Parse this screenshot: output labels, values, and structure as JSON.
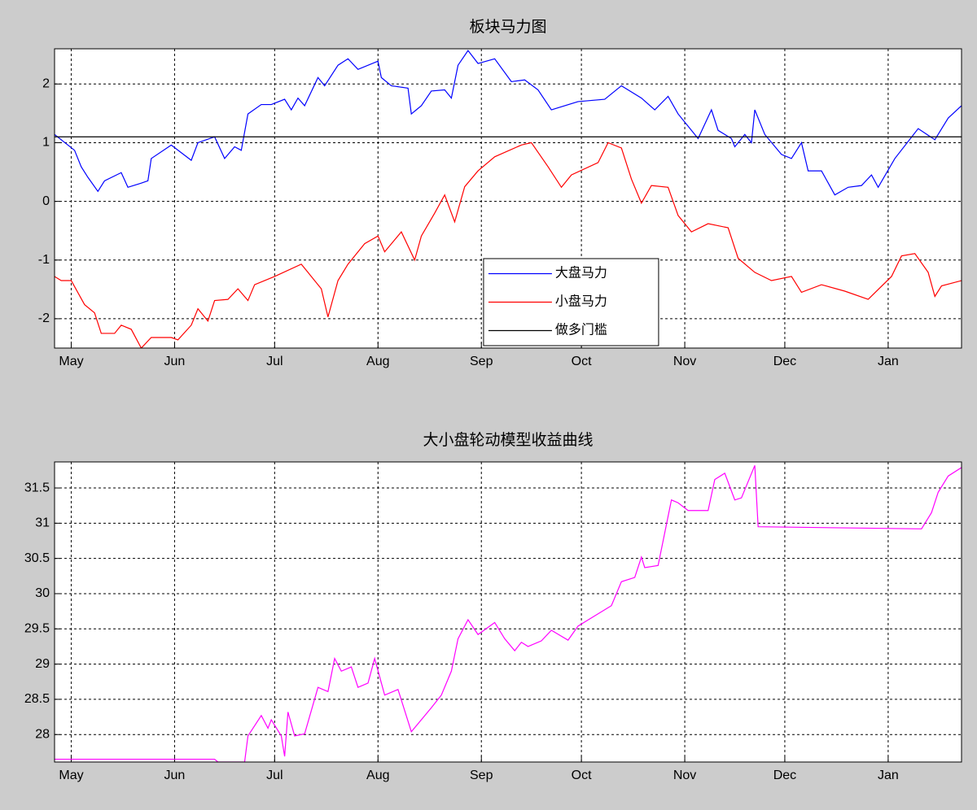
{
  "chart_data": [
    {
      "type": "line",
      "title": "板块马力图",
      "xlim": [
        -5,
        267
      ],
      "xticks": [
        {
          "value": 0,
          "label": "May"
        },
        {
          "value": 31,
          "label": "Jun"
        },
        {
          "value": 61,
          "label": "Jul"
        },
        {
          "value": 92,
          "label": "Aug"
        },
        {
          "value": 123,
          "label": "Sep"
        },
        {
          "value": 153,
          "label": "Oct"
        },
        {
          "value": 184,
          "label": "Nov"
        },
        {
          "value": 214,
          "label": "Dec"
        },
        {
          "value": 245,
          "label": "Jan"
        }
      ],
      "ylim": [
        -2.5,
        2.6
      ],
      "yticks": [
        -2,
        -1,
        0,
        1,
        2
      ],
      "grid": true,
      "legend": "lower center",
      "series": [
        {
          "name": "大盘马力",
          "color": "#0000ff",
          "x": [
            -5,
            1,
            3,
            5,
            8,
            10,
            15,
            17,
            21,
            23,
            24,
            30,
            36,
            38,
            43,
            46,
            49,
            51,
            53,
            57,
            60,
            64,
            66,
            68,
            70,
            74,
            76,
            80,
            83,
            86,
            92,
            93,
            96,
            101,
            102,
            105,
            108,
            112,
            114,
            116,
            119,
            122,
            127,
            132,
            136,
            140,
            144,
            152,
            160,
            165,
            171,
            175,
            179,
            182,
            186,
            188,
            192,
            194,
            198,
            199,
            202,
            204,
            205,
            208,
            213,
            216,
            219,
            221,
            225,
            229,
            233,
            237,
            240,
            242,
            247,
            254,
            259,
            263,
            267
          ],
          "values": [
            1.14,
            0.87,
            0.59,
            0.41,
            0.17,
            0.35,
            0.49,
            0.24,
            0.31,
            0.35,
            0.73,
            0.96,
            0.7,
            1.0,
            1.1,
            0.73,
            0.93,
            0.87,
            1.49,
            1.65,
            1.65,
            1.74,
            1.56,
            1.76,
            1.63,
            2.11,
            1.97,
            2.32,
            2.43,
            2.25,
            2.39,
            2.11,
            1.97,
            1.93,
            1.49,
            1.63,
            1.88,
            1.9,
            1.76,
            2.32,
            2.57,
            2.35,
            2.43,
            2.04,
            2.07,
            1.9,
            1.56,
            1.7,
            1.74,
            1.97,
            1.76,
            1.56,
            1.79,
            1.49,
            1.21,
            1.07,
            1.56,
            1.21,
            1.07,
            0.93,
            1.14,
            1.0,
            1.56,
            1.14,
            0.8,
            0.73,
            1.0,
            0.52,
            0.52,
            0.11,
            0.24,
            0.27,
            0.45,
            0.24,
            0.73,
            1.24,
            1.05,
            1.42,
            1.63
          ]
        },
        {
          "name": "小盘马力",
          "color": "#ff0000",
          "x": [
            -5,
            -3,
            0,
            4,
            7,
            9,
            13,
            15,
            18,
            21,
            24,
            30,
            32,
            36,
            38,
            41,
            43,
            47,
            50,
            53,
            55,
            61,
            69,
            71,
            75,
            77,
            80,
            83,
            88,
            92,
            94,
            99,
            103,
            105,
            109,
            112,
            115,
            118,
            122,
            127,
            135,
            138,
            143,
            147,
            150,
            158,
            161,
            165,
            168,
            171,
            174,
            179,
            182,
            186,
            191,
            197,
            200,
            205,
            210,
            216,
            219,
            225,
            232,
            239,
            246,
            249,
            253,
            257,
            259,
            261,
            267
          ],
          "values": [
            -1.28,
            -1.35,
            -1.35,
            -1.76,
            -1.9,
            -2.25,
            -2.25,
            -2.11,
            -2.18,
            -2.5,
            -2.32,
            -2.32,
            -2.36,
            -2.11,
            -1.83,
            -2.04,
            -1.69,
            -1.67,
            -1.49,
            -1.69,
            -1.42,
            -1.28,
            -1.07,
            -1.21,
            -1.49,
            -1.97,
            -1.35,
            -1.07,
            -0.72,
            -0.59,
            -0.86,
            -0.52,
            -1.0,
            -0.59,
            -0.2,
            0.11,
            -0.35,
            0.25,
            0.52,
            0.76,
            0.96,
            1.0,
            0.59,
            0.24,
            0.45,
            0.66,
            1.0,
            0.91,
            0.38,
            -0.03,
            0.27,
            0.24,
            -0.24,
            -0.52,
            -0.38,
            -0.45,
            -0.97,
            -1.21,
            -1.35,
            -1.28,
            -1.55,
            -1.42,
            -1.53,
            -1.67,
            -1.28,
            -0.93,
            -0.89,
            -1.21,
            -1.62,
            -1.44,
            -1.35
          ]
        },
        {
          "name": "做多门槛",
          "color": "#000000",
          "x": [
            -5,
            267
          ],
          "values": [
            1.1,
            1.1
          ]
        }
      ]
    },
    {
      "type": "line",
      "title": "大小盘轮动模型收益曲线",
      "xlim": [
        -5,
        267
      ],
      "xticks": [
        {
          "value": 0,
          "label": "May"
        },
        {
          "value": 31,
          "label": "Jun"
        },
        {
          "value": 61,
          "label": "Jul"
        },
        {
          "value": 92,
          "label": "Aug"
        },
        {
          "value": 123,
          "label": "Sep"
        },
        {
          "value": 153,
          "label": "Oct"
        },
        {
          "value": 184,
          "label": "Nov"
        },
        {
          "value": 214,
          "label": "Dec"
        },
        {
          "value": 245,
          "label": "Jan"
        }
      ],
      "ylim": [
        27.61,
        31.87
      ],
      "yticks": [
        28,
        28.5,
        29,
        29.5,
        30,
        30.5,
        31,
        31.5
      ],
      "grid": true,
      "series": [
        {
          "color": "#ff00ff",
          "x": [
            -5,
            43,
            44,
            52,
            53,
            57,
            59,
            60,
            63,
            64,
            65,
            67,
            70,
            74,
            77,
            79,
            81,
            84,
            86,
            89,
            91,
            94,
            98,
            102,
            108,
            111,
            114,
            116,
            119,
            122,
            127,
            130,
            133,
            135,
            137,
            141,
            144,
            149,
            152,
            162,
            165,
            169,
            171,
            172,
            176,
            180,
            182,
            185,
            191,
            193,
            196,
            199,
            201,
            205,
            206,
            255,
            258,
            260,
            263,
            267
          ],
          "values": [
            27.65,
            27.65,
            27.61,
            27.61,
            27.98,
            28.27,
            28.09,
            28.21,
            27.98,
            27.69,
            28.32,
            27.98,
            28.01,
            28.67,
            28.61,
            29.08,
            28.9,
            28.96,
            28.67,
            28.73,
            29.08,
            28.56,
            28.64,
            28.04,
            28.38,
            28.56,
            28.9,
            29.36,
            29.63,
            29.42,
            29.59,
            29.36,
            29.19,
            29.31,
            29.25,
            29.33,
            29.48,
            29.34,
            29.54,
            29.83,
            30.17,
            30.23,
            30.52,
            30.37,
            30.4,
            31.33,
            31.29,
            31.18,
            31.18,
            31.62,
            31.71,
            31.33,
            31.36,
            31.82,
            30.95,
            30.92,
            31.15,
            31.44,
            31.67,
            31.79
          ]
        }
      ]
    }
  ]
}
